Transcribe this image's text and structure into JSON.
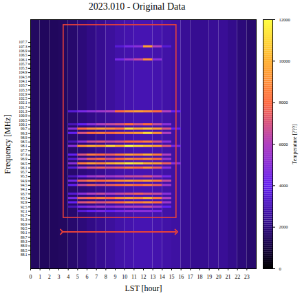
{
  "chart_data": {
    "type": "heatmap",
    "title": "2023.010 - Original Data",
    "x_label": "LST [hour]",
    "y_label": "Frequency [MHz]",
    "xlim": [
      0,
      24
    ],
    "ylim": [
      86.8,
      109.8
    ],
    "xticks": [
      0,
      1,
      2,
      3,
      4,
      5,
      6,
      7,
      8,
      9,
      10,
      11,
      12,
      13,
      14,
      15,
      16,
      17,
      18,
      19,
      20,
      21,
      22,
      23
    ],
    "yticks": [
      88.1,
      88.5,
      88.9,
      89.3,
      89.7,
      90.1,
      90.5,
      90.9,
      91.3,
      91.7,
      92.1,
      92.5,
      92.9,
      93.3,
      93.7,
      94.1,
      94.5,
      94.9,
      95.3,
      95.7,
      96.1,
      96.5,
      96.9,
      97.3,
      97.7,
      98.1,
      98.5,
      98.9,
      99.3,
      99.7,
      100.1,
      100.5,
      100.9,
      101.3,
      101.7,
      102.1,
      102.5,
      102.9,
      103.3,
      103.7,
      104.1,
      104.5,
      104.9,
      105.3,
      105.7,
      106.1,
      106.5,
      106.9,
      107.3,
      107.7
    ],
    "x": [
      0,
      1,
      2,
      3,
      4,
      5,
      6,
      7,
      8,
      9,
      10,
      11,
      12,
      13,
      14,
      15,
      16,
      17,
      18,
      19,
      20,
      21,
      22,
      23
    ],
    "background": {
      "values": [
        1500,
        1450,
        1450,
        1500,
        1700,
        1900,
        2100,
        2300,
        2500,
        2700,
        2800,
        2900,
        2900,
        2800,
        2700,
        2600,
        2400,
        2300,
        2300,
        2400,
        2400,
        2200,
        1900,
        1700
      ]
    },
    "rows": [
      {
        "y": [
          107.2,
          107.4
        ],
        "values": [
          null,
          null,
          null,
          null,
          null,
          null,
          null,
          null,
          null,
          3500,
          4500,
          5000,
          9500,
          6000,
          3500,
          null,
          null,
          null,
          null,
          null,
          null,
          null,
          null,
          null
        ]
      },
      {
        "y": [
          106.0,
          106.2
        ],
        "values": [
          null,
          null,
          null,
          null,
          null,
          null,
          null,
          null,
          null,
          4500,
          5500,
          6500,
          9000,
          5000,
          null,
          null,
          null,
          null,
          null,
          null,
          null,
          null,
          null,
          null
        ]
      },
      {
        "y": [
          101.2,
          101.4
        ],
        "values": [
          null,
          null,
          null,
          null,
          3500,
          4500,
          5000,
          5500,
          6000,
          8000,
          9000,
          9500,
          9000,
          8000,
          6000,
          4000,
          null,
          null,
          null,
          null,
          null,
          null,
          null,
          null
        ]
      },
      {
        "y": [
          100.0,
          100.2
        ],
        "values": [
          null,
          null,
          null,
          null,
          3000,
          4000,
          5000,
          6000,
          6500,
          7000,
          8000,
          7000,
          8000,
          6500,
          5000,
          null,
          null,
          null,
          null,
          null,
          null,
          null,
          null,
          null
        ]
      },
      {
        "y": [
          99.6,
          99.8
        ],
        "values": [
          null,
          null,
          null,
          null,
          5000,
          8000,
          9000,
          9500,
          9000,
          8500,
          11000,
          10000,
          10500,
          9500,
          7000,
          4000,
          null,
          null,
          null,
          null,
          null,
          null,
          null,
          null
        ]
      },
      {
        "y": [
          99.2,
          99.4
        ],
        "values": [
          null,
          null,
          null,
          null,
          4000,
          7000,
          8000,
          8500,
          8000,
          8500,
          9000,
          9500,
          11000,
          9000,
          6000,
          null,
          null,
          null,
          null,
          null,
          null,
          null,
          null,
          null
        ]
      },
      {
        "y": [
          98.4,
          98.6
        ],
        "values": [
          null,
          null,
          null,
          null,
          3000,
          5000,
          6500,
          7000,
          6500,
          7000,
          8000,
          8000,
          8500,
          7000,
          5000,
          null,
          null,
          null,
          null,
          null,
          null,
          null,
          null,
          null
        ]
      },
      {
        "y": [
          98.0,
          98.2
        ],
        "values": [
          null,
          null,
          null,
          null,
          5000,
          9000,
          10000,
          9500,
          11000,
          10000,
          12000,
          11000,
          10500,
          9500,
          7000,
          4500,
          null,
          null,
          null,
          null,
          null,
          null,
          null,
          null
        ]
      },
      {
        "y": [
          97.2,
          97.4
        ],
        "values": [
          null,
          null,
          null,
          null,
          4000,
          7000,
          8500,
          8000,
          7500,
          8500,
          9500,
          9000,
          10000,
          8500,
          6000,
          null,
          null,
          null,
          null,
          null,
          null,
          null,
          null,
          null
        ]
      },
      {
        "y": [
          96.8,
          97.0
        ],
        "values": [
          null,
          null,
          null,
          null,
          3500,
          6000,
          7500,
          8000,
          7000,
          8000,
          9000,
          8500,
          9000,
          8000,
          5500,
          null,
          null,
          null,
          null,
          null,
          null,
          null,
          null,
          null
        ]
      },
      {
        "y": [
          96.4,
          96.6
        ],
        "values": [
          null,
          null,
          null,
          null,
          5000,
          8500,
          9500,
          9000,
          10000,
          10500,
          11500,
          11000,
          10000,
          9500,
          7500,
          5000,
          null,
          null,
          null,
          null,
          null,
          null,
          null,
          null
        ]
      },
      {
        "y": [
          96.0,
          96.2
        ],
        "values": [
          null,
          null,
          null,
          null,
          3500,
          6000,
          7000,
          7500,
          7000,
          7500,
          8500,
          8000,
          9000,
          7500,
          5000,
          null,
          null,
          null,
          null,
          null,
          null,
          null,
          null,
          null
        ]
      },
      {
        "y": [
          95.2,
          95.4
        ],
        "values": [
          null,
          null,
          null,
          null,
          3000,
          4500,
          5500,
          6000,
          5500,
          6000,
          6500,
          6500,
          7000,
          6000,
          4500,
          null,
          null,
          null,
          null,
          null,
          null,
          null,
          null,
          null
        ]
      },
      {
        "y": [
          94.8,
          95.0
        ],
        "values": [
          null,
          null,
          null,
          null,
          4500,
          7500,
          8500,
          8000,
          8500,
          9000,
          9500,
          9000,
          9500,
          8500,
          6500,
          null,
          null,
          null,
          null,
          null,
          null,
          null,
          null,
          null
        ]
      },
      {
        "y": [
          94.4,
          94.6
        ],
        "values": [
          null,
          null,
          null,
          null,
          4000,
          6500,
          7500,
          7000,
          7500,
          8000,
          8500,
          8000,
          8500,
          7500,
          5500,
          null,
          null,
          null,
          null,
          null,
          null,
          null,
          null,
          null
        ]
      },
      {
        "y": [
          93.6,
          93.8
        ],
        "values": [
          null,
          null,
          null,
          null,
          3500,
          5000,
          6000,
          6500,
          6000,
          6500,
          7000,
          7500,
          7000,
          6500,
          5000,
          null,
          null,
          null,
          null,
          null,
          null,
          null,
          null,
          null
        ]
      },
      {
        "y": [
          93.2,
          93.4
        ],
        "values": [
          null,
          null,
          null,
          null,
          4500,
          7500,
          8000,
          8500,
          8000,
          9000,
          9500,
          9000,
          10000,
          8500,
          6000,
          null,
          null,
          null,
          null,
          null,
          null,
          null,
          null,
          null
        ]
      },
      {
        "y": [
          92.8,
          93.0
        ],
        "values": [
          null,
          null,
          null,
          null,
          4000,
          7000,
          7500,
          7000,
          7500,
          8000,
          9000,
          8500,
          9000,
          8000,
          5500,
          null,
          null,
          null,
          null,
          null,
          null,
          null,
          null,
          null
        ]
      },
      {
        "y": [
          92.4,
          92.6
        ],
        "values": [
          null,
          null,
          null,
          null,
          3000,
          4500,
          5000,
          5500,
          5000,
          5500,
          6000,
          6000,
          6500,
          5500,
          4000,
          null,
          null,
          null,
          null,
          null,
          null,
          null,
          null,
          null
        ]
      },
      {
        "y": [
          92.0,
          92.2
        ],
        "values": [
          null,
          null,
          null,
          null,
          null,
          3500,
          4000,
          4500,
          4000,
          4500,
          5000,
          5000,
          5000,
          4500,
          null,
          null,
          null,
          null,
          null,
          null,
          null,
          null,
          null,
          null
        ]
      }
    ],
    "colorbar": {
      "label": "Temperature [???]",
      "range": [
        0,
        12000
      ],
      "ticks": [
        0,
        2000,
        4000,
        6000,
        8000,
        10000,
        12000
      ]
    },
    "annotations": [
      {
        "type": "rect",
        "x": [
          3.5,
          15.5
        ],
        "y": [
          91.5,
          109.3
        ],
        "color": "#e8413a"
      },
      {
        "type": "arrow",
        "x": [
          3.3,
          15.5
        ],
        "y": 90.2,
        "color": "#e8413a"
      }
    ]
  }
}
